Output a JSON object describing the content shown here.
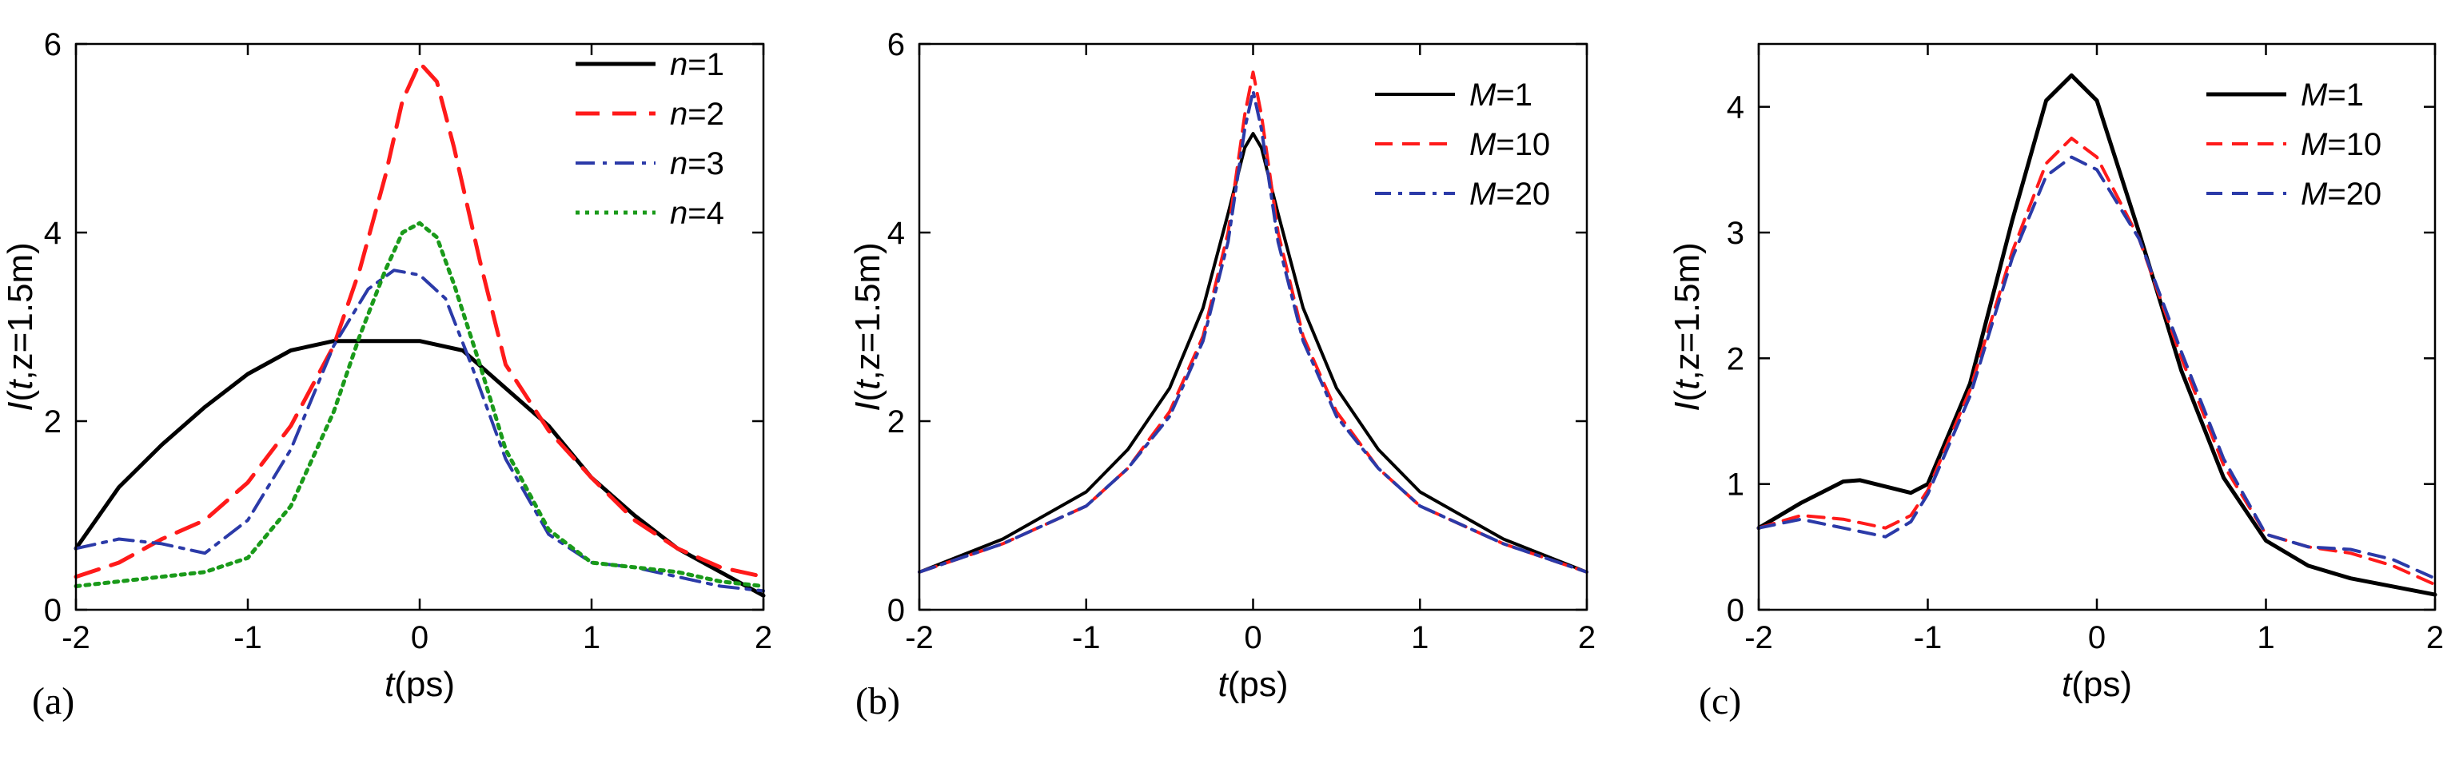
{
  "chart_data": [
    {
      "type": "line",
      "panel_label": "(a)",
      "xlabel_italic": "t",
      "xlabel_rest": "(ps)",
      "ylabel_italic1": "I",
      "ylabel_mid": "(",
      "ylabel_italic2": "t",
      "ylabel_rest": ",z=1.5m)",
      "xlim": [
        -2,
        2
      ],
      "ylim": [
        0,
        6
      ],
      "xticks": [
        "-2",
        "-1",
        "0",
        "1",
        "2"
      ],
      "xtick_values": [
        -2,
        -1,
        0,
        1,
        2
      ],
      "yticks": [
        "0",
        "2",
        "4",
        "6"
      ],
      "ytick_values": [
        0,
        2,
        4,
        6
      ],
      "legend_position": "top-right",
      "series": [
        {
          "var": "n",
          "eq": "=1",
          "color": "#000000",
          "dash": "",
          "width": 5,
          "x": [
            -2,
            -1.75,
            -1.5,
            -1.25,
            -1,
            -0.75,
            -0.5,
            -0.25,
            0,
            0.25,
            0.5,
            0.75,
            1,
            1.25,
            1.5,
            1.75,
            2
          ],
          "y": [
            0.65,
            1.3,
            1.75,
            2.15,
            2.5,
            2.75,
            2.85,
            2.85,
            2.85,
            2.75,
            2.35,
            1.95,
            1.4,
            1.0,
            0.65,
            0.4,
            0.15
          ]
        },
        {
          "var": "n",
          "eq": "=2",
          "color": "#ff1a1a",
          "dash": "30 16",
          "width": 5,
          "x": [
            -2,
            -1.75,
            -1.5,
            -1.25,
            -1,
            -0.75,
            -0.5,
            -0.35,
            -0.2,
            -0.1,
            0,
            0.1,
            0.2,
            0.35,
            0.5,
            0.75,
            1,
            1.25,
            1.5,
            1.75,
            2
          ],
          "y": [
            0.35,
            0.5,
            0.75,
            0.95,
            1.35,
            1.95,
            2.8,
            3.6,
            4.6,
            5.4,
            5.8,
            5.6,
            4.9,
            3.7,
            2.6,
            1.9,
            1.4,
            0.95,
            0.65,
            0.45,
            0.35
          ]
        },
        {
          "var": "n",
          "eq": "=3",
          "color": "#2b3aa8",
          "dash": "24 10 5 10",
          "width": 4,
          "x": [
            -2,
            -1.75,
            -1.5,
            -1.25,
            -1,
            -0.75,
            -0.5,
            -0.3,
            -0.15,
            0,
            0.15,
            0.3,
            0.5,
            0.75,
            1,
            1.25,
            1.5,
            1.75,
            2
          ],
          "y": [
            0.65,
            0.75,
            0.7,
            0.6,
            0.95,
            1.7,
            2.8,
            3.4,
            3.6,
            3.55,
            3.3,
            2.6,
            1.6,
            0.8,
            0.5,
            0.45,
            0.35,
            0.25,
            0.2
          ]
        },
        {
          "var": "n",
          "eq": "=4",
          "color": "#1a9a1a",
          "dash": "5 7",
          "width": 5,
          "x": [
            -2,
            -1.75,
            -1.5,
            -1.25,
            -1,
            -0.75,
            -0.5,
            -0.35,
            -0.2,
            -0.1,
            0,
            0.1,
            0.2,
            0.35,
            0.5,
            0.75,
            1,
            1.25,
            1.5,
            1.75,
            2
          ],
          "y": [
            0.25,
            0.3,
            0.35,
            0.4,
            0.55,
            1.1,
            2.1,
            2.9,
            3.6,
            4.0,
            4.1,
            3.95,
            3.45,
            2.6,
            1.7,
            0.85,
            0.5,
            0.45,
            0.4,
            0.3,
            0.25
          ]
        }
      ]
    },
    {
      "type": "line",
      "panel_label": "(b)",
      "xlabel_italic": "t",
      "xlabel_rest": "(ps)",
      "ylabel_italic1": "I",
      "ylabel_mid": "(",
      "ylabel_italic2": "t",
      "ylabel_rest": ",z=1.5m)",
      "xlim": [
        -2,
        2
      ],
      "ylim": [
        0,
        6
      ],
      "xticks": [
        "-2",
        "-1",
        "0",
        "1",
        "2"
      ],
      "xtick_values": [
        -2,
        -1,
        0,
        1,
        2
      ],
      "yticks": [
        "0",
        "2",
        "4",
        "6"
      ],
      "ytick_values": [
        0,
        2,
        4,
        6
      ],
      "legend_position": "top-right",
      "series": [
        {
          "var": "M",
          "eq": "=1",
          "color": "#000000",
          "dash": "",
          "width": 4,
          "x": [
            -2,
            -1.5,
            -1,
            -0.75,
            -0.5,
            -0.3,
            -0.15,
            -0.05,
            0,
            0.05,
            0.15,
            0.3,
            0.5,
            0.75,
            1,
            1.5,
            2
          ],
          "y": [
            0.4,
            0.75,
            1.25,
            1.7,
            2.35,
            3.2,
            4.2,
            4.9,
            5.05,
            4.9,
            4.2,
            3.2,
            2.35,
            1.7,
            1.25,
            0.75,
            0.4
          ]
        },
        {
          "var": "M",
          "eq": "=10",
          "color": "#ff1a1a",
          "dash": "22 12",
          "width": 4,
          "x": [
            -2,
            -1.5,
            -1,
            -0.75,
            -0.5,
            -0.3,
            -0.15,
            -0.05,
            0,
            0.05,
            0.15,
            0.3,
            0.5,
            0.75,
            1,
            1.5,
            2
          ],
          "y": [
            0.4,
            0.7,
            1.1,
            1.5,
            2.1,
            2.9,
            4.0,
            5.25,
            5.7,
            5.25,
            4.0,
            2.9,
            2.1,
            1.5,
            1.1,
            0.7,
            0.4
          ]
        },
        {
          "var": "M",
          "eq": "=20",
          "color": "#2b3aa8",
          "dash": "20 9 5 9",
          "width": 4,
          "x": [
            -2,
            -1.5,
            -1,
            -0.75,
            -0.5,
            -0.3,
            -0.15,
            -0.05,
            0,
            0.05,
            0.15,
            0.3,
            0.5,
            0.75,
            1,
            1.5,
            2
          ],
          "y": [
            0.4,
            0.7,
            1.1,
            1.5,
            2.05,
            2.85,
            3.9,
            5.1,
            5.5,
            5.1,
            3.9,
            2.85,
            2.05,
            1.5,
            1.1,
            0.7,
            0.4
          ]
        }
      ]
    },
    {
      "type": "line",
      "panel_label": "(c)",
      "xlabel_italic": "t",
      "xlabel_rest": "(ps)",
      "ylabel_italic1": "I",
      "ylabel_mid": "(",
      "ylabel_italic2": "t",
      "ylabel_rest": ",z=1.5m)",
      "xlim": [
        -2,
        2
      ],
      "ylim": [
        0,
        4.5
      ],
      "xticks": [
        "-2",
        "-1",
        "0",
        "1",
        "2"
      ],
      "xtick_values": [
        -2,
        -1,
        0,
        1,
        2
      ],
      "yticks": [
        "0",
        "1",
        "2",
        "3",
        "4"
      ],
      "ytick_values": [
        0,
        1,
        2,
        3,
        4
      ],
      "legend_position": "top-right",
      "series": [
        {
          "var": "M",
          "eq": "=1",
          "color": "#000000",
          "dash": "",
          "width": 5,
          "x": [
            -2,
            -1.75,
            -1.5,
            -1.4,
            -1.25,
            -1.1,
            -1,
            -0.75,
            -0.5,
            -0.3,
            -0.15,
            0,
            0.25,
            0.5,
            0.75,
            1,
            1.25,
            1.5,
            2
          ],
          "y": [
            0.65,
            0.85,
            1.02,
            1.03,
            0.98,
            0.93,
            1.0,
            1.8,
            3.1,
            4.05,
            4.25,
            4.05,
            3.0,
            1.9,
            1.05,
            0.55,
            0.35,
            0.25,
            0.12
          ]
        },
        {
          "var": "M",
          "eq": "=10",
          "color": "#ff1a1a",
          "dash": "20 12",
          "width": 4,
          "x": [
            -2,
            -1.75,
            -1.5,
            -1.25,
            -1.1,
            -1,
            -0.75,
            -0.5,
            -0.3,
            -0.15,
            0,
            0.25,
            0.5,
            0.75,
            1,
            1.25,
            1.5,
            1.75,
            2
          ],
          "y": [
            0.65,
            0.75,
            0.72,
            0.65,
            0.75,
            0.95,
            1.75,
            2.85,
            3.55,
            3.75,
            3.6,
            2.95,
            2.0,
            1.15,
            0.6,
            0.5,
            0.45,
            0.35,
            0.2
          ]
        },
        {
          "var": "M",
          "eq": "=20",
          "color": "#2b3aa8",
          "dash": "20 12",
          "width": 4,
          "x": [
            -2,
            -1.75,
            -1.5,
            -1.25,
            -1.1,
            -1,
            -0.75,
            -0.5,
            -0.3,
            -0.15,
            0,
            0.25,
            0.5,
            0.75,
            1,
            1.25,
            1.5,
            1.75,
            2
          ],
          "y": [
            0.65,
            0.72,
            0.65,
            0.58,
            0.7,
            0.92,
            1.7,
            2.8,
            3.45,
            3.6,
            3.5,
            2.95,
            2.05,
            1.2,
            0.6,
            0.5,
            0.48,
            0.4,
            0.25
          ]
        }
      ]
    }
  ]
}
